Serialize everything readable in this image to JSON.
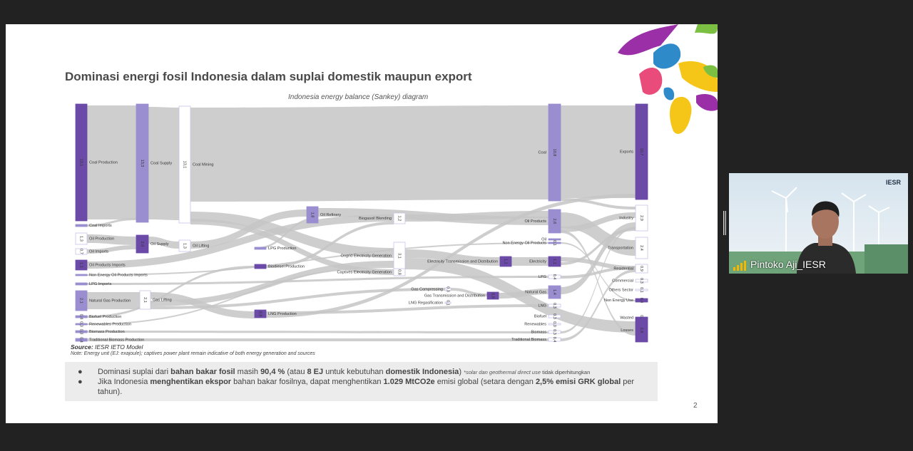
{
  "slide": {
    "title": "Dominasi energi fosil Indonesia dalam suplai domestik maupun export",
    "chart_subtitle": "Indonesia energy balance (Sankey) diagram",
    "source_label": "Source:",
    "source_text": "IESR IETO Model",
    "note": "Note: Energy unit (EJ: exajoule); captives power plant remain indicative of both energy generation and sources",
    "page_number": "2"
  },
  "bullets": {
    "marker": "●",
    "b1_a": "Dominasi suplai dari ",
    "b1_b": "bahan bakar fosil",
    "b1_c": " masih ",
    "b1_d": "90,4 %",
    "b1_e": " (atau ",
    "b1_f": "8 EJ",
    "b1_g": " untuk kebutuhan ",
    "b1_h": "domestik Indonesia",
    "b1_i": ") ",
    "b1_j": "*solar dan geothermal direct use",
    "b1_k": " tidak diperhitungkan",
    "b2_a": "Jika Indonesia ",
    "b2_b": "menghentikan ekspor",
    "b2_c": " bahan bakar fosilnya, dapat menghentikan ",
    "b2_d": "1.029 MtCO2e",
    "b2_e": " emisi global (setara dengan ",
    "b2_f": "2,5% emisi GRK global",
    "b2_g": " per tahun)."
  },
  "webcam": {
    "participant_name": "Pintoko Aji_IESR",
    "logo_text": "IESR"
  },
  "colors": {
    "node_dark": "#6b4aa8",
    "node_mid": "#9a8ed0",
    "node_light": "#c9c2e8",
    "flow": "#c8c8c8"
  },
  "chart_data": {
    "type": "sankey",
    "unit": "EJ",
    "nodes": [
      {
        "name": "Coal Production",
        "value": "13,1"
      },
      {
        "name": "Coal Imports",
        "value": ""
      },
      {
        "name": "Oil Production",
        "value": "1,3"
      },
      {
        "name": "Oil Imports",
        "value": "0,7"
      },
      {
        "name": "Oil Products Imports",
        "value": "1,1"
      },
      {
        "name": "Non Energy Oil Products Imports",
        "value": ""
      },
      {
        "name": "LPG Imports",
        "value": ""
      },
      {
        "name": "Natural Gas Production",
        "value": "2,1"
      },
      {
        "name": "Biofuel Production",
        "value": "0,4"
      },
      {
        "name": "Renewables Production",
        "value": "0,3"
      },
      {
        "name": "Biomass Production",
        "value": "0,3"
      },
      {
        "name": "Traditional Biomass Production",
        "value": "0,4"
      },
      {
        "name": "Coal Supply",
        "value": "13,3"
      },
      {
        "name": "Oil Supply",
        "value": "2,0"
      },
      {
        "name": "Gas Lifting",
        "value": "2,1"
      },
      {
        "name": "Coal Mining",
        "value": "13,1"
      },
      {
        "name": "Oil Lifting",
        "value": "1,3"
      },
      {
        "name": "LPG Production",
        "value": ""
      },
      {
        "name": "Biodiesel Production",
        "value": ""
      },
      {
        "name": "LNG Production",
        "value": "0,9"
      },
      {
        "name": "Oil Refinery",
        "value": "1,8"
      },
      {
        "name": "Biogasoil Blending",
        "value": "1,2"
      },
      {
        "name": "Ongrid Electricity Generation",
        "value": "3,1"
      },
      {
        "name": "Captives Electricity Generation",
        "value": "0,8"
      },
      {
        "name": "Gas Compressing",
        "value": "0,3"
      },
      {
        "name": "Gas Transmission and Distribution",
        "value": "0,9"
      },
      {
        "name": "LNG Regasification",
        "value": "0,1"
      },
      {
        "name": "Electricity Transmission and Distribution",
        "value": "1,1"
      },
      {
        "name": "Coal",
        "value": "10,8"
      },
      {
        "name": "Oil Products",
        "value": "2,6"
      },
      {
        "name": "Oil",
        "value": ""
      },
      {
        "name": "Non Energy Oil Products",
        "value": "0,1"
      },
      {
        "name": "Electricity",
        "value": "1,1"
      },
      {
        "name": "LPG",
        "value": "0,4"
      },
      {
        "name": "Natural Gas",
        "value": "1,4"
      },
      {
        "name": "LNG",
        "value": "0,3"
      },
      {
        "name": "Biofuel",
        "value": "0,3"
      },
      {
        "name": "Renewables",
        "value": "0,0"
      },
      {
        "name": "Biomass",
        "value": "0,3"
      },
      {
        "name": "Traditional Biomass",
        "value": "0,4"
      },
      {
        "name": "Exports",
        "value": "10,7"
      },
      {
        "name": "Industry",
        "value": "2,9"
      },
      {
        "name": "Transportation",
        "value": "2,4"
      },
      {
        "name": "Residential",
        "value": "0,9"
      },
      {
        "name": "Commercial",
        "value": "0,3"
      },
      {
        "name": "Others Sector",
        "value": "0,1"
      },
      {
        "name": "Non Energy Use",
        "value": "0,4"
      },
      {
        "name": "Wasted",
        "value": "0,1"
      },
      {
        "name": "Losses",
        "value": "2,8"
      }
    ]
  }
}
